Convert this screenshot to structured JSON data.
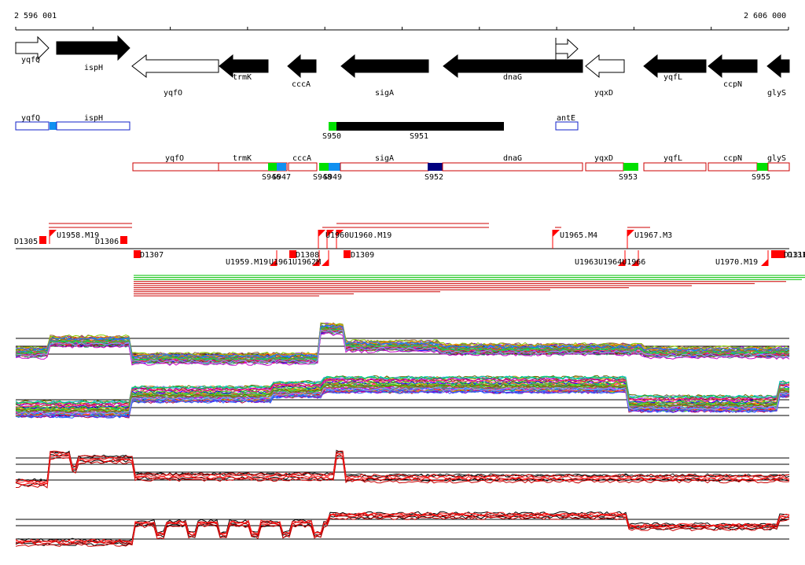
{
  "ruler": {
    "start_label": "2 596 001",
    "end_label": "2 606 000"
  },
  "colors": {
    "gene_fill": "#000000",
    "outline": "#000000",
    "blue_box": "#1020c8",
    "red_box": "#cc0000",
    "green": "#00e000",
    "light_blue": "#1090f0",
    "navy": "#000080",
    "marker_red": "#ff0000"
  },
  "genes": [
    {
      "name": "yqfQ",
      "strand": "+",
      "filled": false
    },
    {
      "name": "ispH",
      "strand": "+",
      "filled": true
    },
    {
      "name": "yqfO",
      "strand": "-",
      "filled": false
    },
    {
      "name": "trmK",
      "strand": "-",
      "filled": true
    },
    {
      "name": "cccA",
      "strand": "-",
      "filled": true
    },
    {
      "name": "sigA",
      "strand": "-",
      "filled": true
    },
    {
      "name": "dnaG",
      "strand": "-",
      "filled": true
    },
    {
      "name": "yqxD",
      "strand": "-",
      "filled": false
    },
    {
      "name": "yqfL",
      "strand": "-",
      "filled": true
    },
    {
      "name": "ccpN",
      "strand": "-",
      "filled": true
    },
    {
      "name": "glyS",
      "strand": "-",
      "filled": true
    }
  ],
  "operon_row_1": {
    "boxes": [
      {
        "label": "yqfQ"
      },
      {
        "label": "ispH"
      },
      {
        "label": "antE"
      }
    ],
    "sites": [
      {
        "label": "S950"
      },
      {
        "label": "S951"
      }
    ]
  },
  "operon_row_2": {
    "boxes": [
      {
        "label": "yqfO"
      },
      {
        "label": "trmK"
      },
      {
        "label": "cccA"
      },
      {
        "label": "sigA"
      },
      {
        "label": "dnaG"
      },
      {
        "label": "yqxD"
      },
      {
        "label": "yqfL"
      },
      {
        "label": "ccpN"
      },
      {
        "label": "glyS"
      }
    ],
    "sites": [
      {
        "label": "S946"
      },
      {
        "label": "S947"
      },
      {
        "label": "S948"
      },
      {
        "label": "S949"
      },
      {
        "label": "S952"
      },
      {
        "label": "S953"
      },
      {
        "label": "S955"
      }
    ]
  },
  "features": {
    "upper_labels": [
      {
        "label": "U1958.M19"
      },
      {
        "label": "D1305"
      },
      {
        "label": "D1306"
      },
      {
        "label": "U1960U1960.M19"
      },
      {
        "label": "U1965.M4"
      },
      {
        "label": "U1967.M3"
      }
    ],
    "lower_labels": [
      {
        "label": "D1307"
      },
      {
        "label": "U1959.M19"
      },
      {
        "label": "U1961"
      },
      {
        "label": "U1962M"
      },
      {
        "label": "D1308"
      },
      {
        "label": "D1309"
      },
      {
        "label": "U1963U1964U1966"
      },
      {
        "label": "U1970.M19"
      },
      {
        "label": "D1310"
      },
      {
        "label": "D1311"
      }
    ]
  },
  "tracks": [
    {
      "name": "tiling-array-sense-profiles"
    },
    {
      "name": "tiling-array-antisense-profiles"
    },
    {
      "name": "selected-sense-profiles"
    },
    {
      "name": "selected-antisense-profiles"
    }
  ]
}
